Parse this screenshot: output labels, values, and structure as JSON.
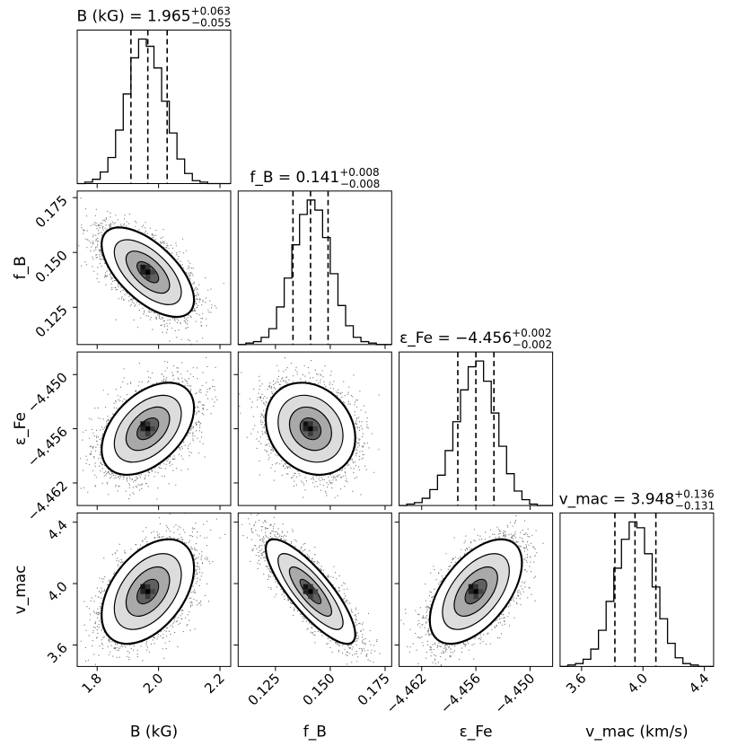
{
  "chart_data": {
    "type": "corner",
    "parameters": [
      {
        "key": "B",
        "title": {
          "base": "B (kG) = 1.965",
          "sup": "+0.063",
          "sub": "−0.055"
        },
        "xlabel": "B (kG)",
        "median": 1.965,
        "upper": 0.063,
        "lower": 0.055,
        "range": [
          1.735,
          2.235
        ],
        "ticks": [
          1.8,
          2.0,
          2.2
        ],
        "tick_labels": [
          "1.8",
          "2.0",
          "2.2"
        ]
      },
      {
        "key": "fB",
        "title": {
          "base": "f_B = 0.141",
          "sup": "+0.008",
          "sub": "−0.008"
        },
        "xlabel": "f_B",
        "ylabel": "f_B",
        "median": 0.141,
        "upper": 0.008,
        "lower": 0.008,
        "range": [
          0.108,
          0.178
        ],
        "ticks": [
          0.125,
          0.15,
          0.175
        ],
        "tick_labels": [
          "0.125",
          "0.150",
          "0.175"
        ]
      },
      {
        "key": "eFe",
        "title": {
          "base": "ε_Fe = −4.456",
          "sup": "+0.002",
          "sub": "−0.002"
        },
        "xlabel": "ε_Fe",
        "ylabel": "ε_Fe",
        "median": -4.456,
        "upper": 0.002,
        "lower": 0.002,
        "range": [
          -4.4645,
          -4.4475
        ],
        "ticks": [
          -4.462,
          -4.456,
          -4.45
        ],
        "tick_labels": [
          "−4.462",
          "−4.456",
          "−4.450"
        ]
      },
      {
        "key": "vmac",
        "title": {
          "base": "v_mac = 3.948",
          "sup": "+0.136",
          "sub": "−0.131"
        },
        "xlabel": "v_mac (km/s)",
        "ylabel": "v_mac",
        "median": 3.948,
        "upper": 0.136,
        "lower": 0.131,
        "range": [
          3.46,
          4.46
        ],
        "ticks": [
          3.6,
          4.0,
          4.4
        ],
        "tick_labels": [
          "3.6",
          "4.0",
          "4.4"
        ]
      }
    ],
    "histograms": [
      [
        0,
        1,
        3,
        8,
        18,
        37,
        62,
        87,
        100,
        95,
        80,
        57,
        35,
        17,
        7,
        2,
        1,
        0,
        0,
        0
      ],
      [
        0,
        1,
        2,
        5,
        11,
        26,
        46,
        69,
        90,
        100,
        93,
        74,
        49,
        27,
        13,
        5,
        2,
        1,
        0,
        0
      ],
      [
        0,
        1,
        2,
        5,
        11,
        21,
        38,
        58,
        80,
        96,
        100,
        86,
        64,
        41,
        22,
        10,
        4,
        1,
        0,
        0
      ],
      [
        0,
        1,
        2,
        5,
        12,
        25,
        45,
        68,
        88,
        100,
        96,
        78,
        55,
        33,
        16,
        6,
        2,
        1,
        0,
        0
      ]
    ],
    "correlations": {
      "fB_B": -0.62,
      "eFe_B": 0.45,
      "eFe_fB": -0.2,
      "vmac_B": 0.45,
      "vmac_fB": -0.82,
      "vmac_eFe": 0.55
    },
    "quantile_lines": [
      "16%",
      "50%",
      "84%"
    ]
  }
}
